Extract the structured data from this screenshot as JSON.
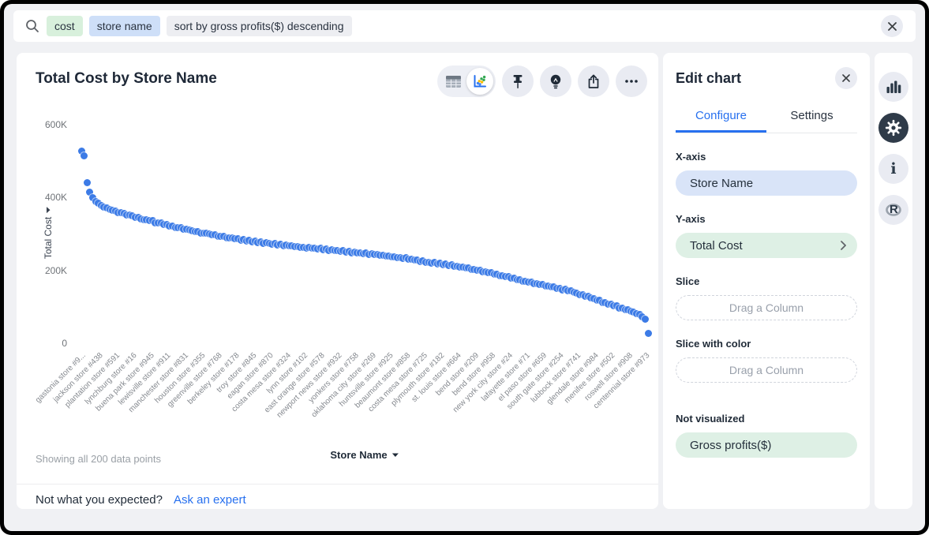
{
  "search_bar": {
    "tokens": [
      {
        "text": "cost",
        "type": "measure-token",
        "bg": "#D8F0DC"
      },
      {
        "text": "store name",
        "type": "attribute-token",
        "bg": "#CEDFF8"
      },
      {
        "text": "sort by gross profits($) descending",
        "type": "keyword-phrase-token",
        "bg": "#EDEEF2"
      }
    ]
  },
  "chart_panel": {
    "title": "Total Cost by Store Name",
    "showing_text": "Showing all 200 data points",
    "x_axis_selector": "Store Name",
    "not_expected": "Not what you expected?",
    "ask_expert": "Ask an expert",
    "toolbar_icons": [
      "table-view",
      "chart-view",
      "pin",
      "insights-bulb",
      "share",
      "more-options"
    ]
  },
  "chart_data": {
    "type": "scatter",
    "title": "Total Cost by Store Name",
    "xlabel": "Store Name",
    "ylabel": "Total Cost",
    "ylim": [
      0,
      600000
    ],
    "y_ticks": [
      "600K",
      "400K",
      "200K",
      "0"
    ],
    "grid": false,
    "legend": "none",
    "point_color": "#3C7BE6",
    "n_points": 200,
    "values_unit": "USD thousands (K)",
    "label_every_n_points": 6,
    "x_tick_labels": [
      "gastonia store #9...",
      "jackson store #438",
      "plantation store #591",
      "lynchburg store #16",
      "buena park store #945",
      "lewisville store #911",
      "manchester store #831",
      "houston store #355",
      "greenville store #768",
      "berkeley store #178",
      "troy store #845",
      "eagan store #870",
      "costa mesa store #324",
      "lynn store #102",
      "east orange store #578",
      "newport news store #932",
      "yonkers store #758",
      "oklahoma city store #269",
      "huntsville store #925",
      "beaumont store #858",
      "costa mesa store #725",
      "plymouth store #182",
      "st. louis store #664",
      "bend store #209",
      "bend store #958",
      "new york city store #24",
      "lafayette store #71",
      "el paso store #659",
      "south gate store #254",
      "lubbock store #741",
      "glendale store #984",
      "menifee store #502",
      "roswell store #908",
      "centennial store #973"
    ],
    "values_k": [
      527,
      514,
      441,
      414,
      400,
      389,
      384,
      377,
      373,
      372,
      368,
      364,
      363,
      359,
      358,
      357,
      352,
      351,
      349,
      345,
      346,
      341,
      340,
      340,
      336,
      336,
      331,
      330,
      330,
      326,
      325,
      321,
      322,
      318,
      317,
      317,
      312,
      312,
      311,
      308,
      307,
      307,
      303,
      303,
      302,
      299,
      298,
      298,
      294,
      294,
      293,
      290,
      289,
      289,
      286,
      286,
      283,
      285,
      281,
      282,
      279,
      280,
      277,
      278,
      275,
      277,
      274,
      272,
      273,
      270,
      271,
      268,
      269,
      267,
      268,
      265,
      266,
      263,
      264,
      261,
      263,
      260,
      261,
      258,
      260,
      257,
      258,
      255,
      257,
      254,
      255,
      253,
      254,
      251,
      252,
      249,
      250,
      248,
      249,
      246,
      247,
      244,
      246,
      243,
      244,
      241,
      242,
      239,
      240,
      237,
      238,
      235,
      236,
      233,
      234,
      231,
      231,
      228,
      228,
      225,
      226,
      222,
      223,
      220,
      221,
      218,
      219,
      216,
      217,
      214,
      215,
      211,
      212,
      208,
      209,
      206,
      206,
      203,
      203,
      200,
      200,
      196,
      197,
      193,
      193,
      190,
      190,
      186,
      186,
      182,
      182,
      178,
      178,
      174,
      174,
      170,
      171,
      167,
      167,
      164,
      164,
      161,
      161,
      157,
      158,
      154,
      154,
      151,
      151,
      147,
      148,
      144,
      143,
      139,
      138,
      134,
      133,
      129,
      128,
      124,
      122,
      118,
      117,
      112,
      112,
      107,
      107,
      102,
      102,
      97,
      97,
      92,
      92,
      87,
      86,
      81,
      78,
      72,
      67,
      28
    ]
  },
  "edit_panel": {
    "title": "Edit chart",
    "tabs": [
      {
        "label": "Configure",
        "active": true
      },
      {
        "label": "Settings",
        "active": false
      }
    ],
    "fields": [
      {
        "label": "X-axis",
        "value": "Store Name"
      },
      {
        "label": "Y-axis",
        "value": "Total Cost"
      },
      {
        "label": "Slice",
        "placeholder": "Drag a Column"
      },
      {
        "label": "Slice with color",
        "placeholder": "Drag a Column"
      },
      {
        "label": "Not visualized",
        "value": "Gross profits($)"
      }
    ]
  },
  "right_rail": {
    "icons": [
      "chart-columns",
      "gear",
      "info",
      "r-analysis"
    ]
  },
  "colors": {
    "accent_blue": "#2770EF",
    "dot_blue": "#3C7BE6",
    "attribute_blue_bg": "#CEDFF8",
    "measure_green_bg": "#DEF0E5",
    "page_bg": "#F0F1F4",
    "active_rail_bg": "#2F3B49"
  }
}
